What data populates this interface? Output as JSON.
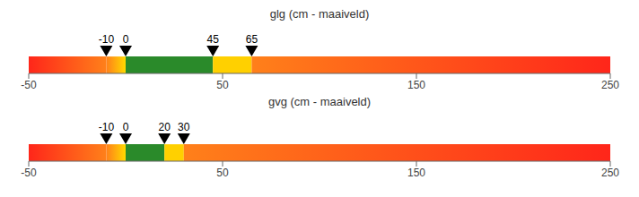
{
  "chart_data": [
    {
      "type": "bar",
      "orientation": "horizontal",
      "title": "glg (cm - maaiveld)",
      "xlim": [
        -50,
        250
      ],
      "xticks": [
        -50,
        50,
        150,
        250
      ],
      "grid": false,
      "tick_labels": "x",
      "series": [
        {
          "color": [
            "#ff261a",
            "#ff801a"
          ],
          "values": [
            [
              -50,
              -10
            ]
          ]
        },
        {
          "color": [
            "#ff801a",
            "#ffd900"
          ],
          "values": [
            [
              -10,
              0
            ]
          ]
        },
        {
          "color": "#2a8a2a",
          "values": [
            [
              0,
              45
            ]
          ]
        },
        {
          "color": "#ffd000",
          "values": [
            [
              45,
              65
            ]
          ]
        },
        {
          "color": [
            "#ff801a",
            "#ff261a"
          ],
          "values": [
            [
              65,
              250
            ]
          ]
        },
        {
          "type": "scatter",
          "marker": "triangle_down",
          "color": "#000000",
          "data_labels": true,
          "x": [
            -10,
            0,
            45,
            65
          ]
        }
      ]
    },
    {
      "type": "bar",
      "orientation": "horizontal",
      "title": "gvg (cm - maaiveld)",
      "xlim": [
        -50,
        250
      ],
      "xticks": [
        -50,
        50,
        150,
        250
      ],
      "grid": false,
      "tick_labels": "x",
      "series": [
        {
          "color": [
            "#ff261a",
            "#ff801a"
          ],
          "values": [
            [
              -50,
              -10
            ]
          ]
        },
        {
          "color": [
            "#ff801a",
            "#ffd900"
          ],
          "values": [
            [
              -10,
              0
            ]
          ]
        },
        {
          "color": "#2a8a2a",
          "values": [
            [
              0,
              20
            ]
          ]
        },
        {
          "color": "#ffd000",
          "values": [
            [
              20,
              30
            ]
          ]
        },
        {
          "color": [
            "#ff801a",
            "#ff261a"
          ],
          "values": [
            [
              30,
              250
            ]
          ]
        },
        {
          "type": "scatter",
          "marker": "triangle_down",
          "color": "#000000",
          "data_labels": true,
          "x": [
            -10,
            0,
            20,
            30
          ]
        }
      ]
    }
  ]
}
